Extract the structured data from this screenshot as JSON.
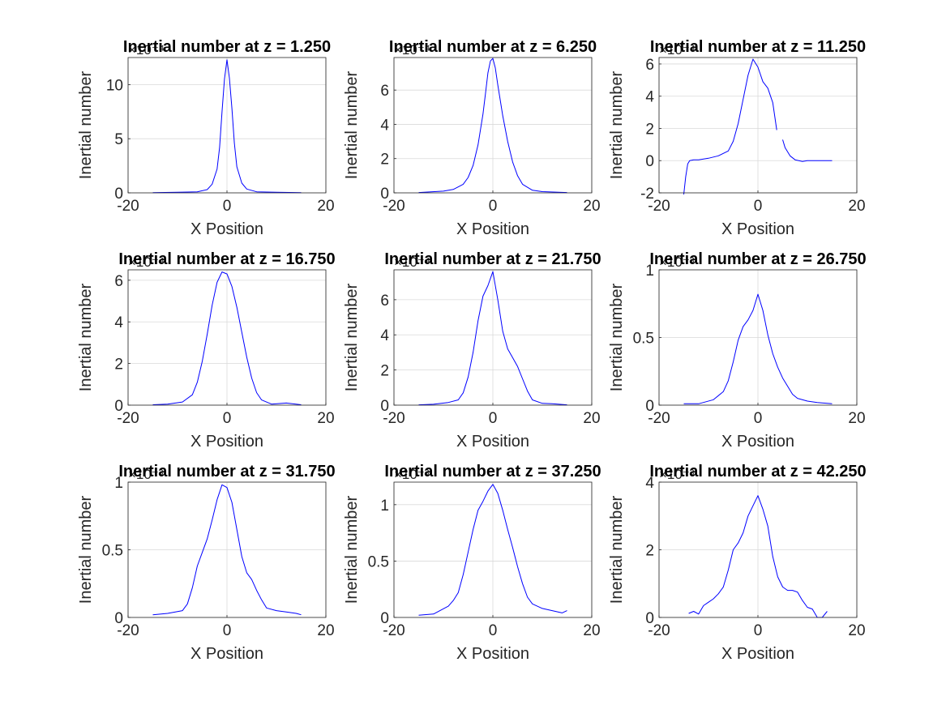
{
  "figure": {
    "background": "#ffffff",
    "line_color": "#0000ff",
    "grid_color": "#d9d9d9",
    "axis_color": "#262626"
  },
  "chart_data": [
    {
      "type": "line",
      "title": "Inertial number at z = 1.250",
      "xlabel": "X Position",
      "ylabel": "Inertial number",
      "exponent_label": "×10⁻⁴",
      "xlim": [
        -20,
        20
      ],
      "ylim": [
        0,
        12.5
      ],
      "xticks": [
        -20,
        0,
        20
      ],
      "yticks": [
        0,
        5,
        10
      ],
      "ytick_labels": [
        "0",
        "5",
        "10"
      ],
      "grid": true,
      "series": [
        {
          "x": [
            -15,
            -10,
            -6,
            -4,
            -3,
            -2,
            -1.5,
            -1,
            -0.5,
            0,
            0.5,
            1,
            1.5,
            2,
            3,
            4,
            6,
            10,
            15
          ],
          "y": [
            0.02,
            0.05,
            0.1,
            0.3,
            0.8,
            2.2,
            4.2,
            7.5,
            10.5,
            12.3,
            10.6,
            7.8,
            4.6,
            2.4,
            0.9,
            0.35,
            0.1,
            0.05,
            0.02
          ]
        }
      ]
    },
    {
      "type": "line",
      "title": "Inertial number at z = 6.250",
      "xlabel": "X Position",
      "ylabel": "Inertial number",
      "exponent_label": "×10⁻⁴",
      "xlim": [
        -20,
        20
      ],
      "ylim": [
        0,
        7.9
      ],
      "xticks": [
        -20,
        0,
        20
      ],
      "yticks": [
        0,
        2,
        4,
        6
      ],
      "ytick_labels": [
        "0",
        "2",
        "4",
        "6"
      ],
      "grid": true,
      "series": [
        {
          "x": [
            -15,
            -10,
            -8,
            -6,
            -5,
            -4,
            -3,
            -2,
            -1.5,
            -1,
            -0.5,
            0,
            0.5,
            1,
            2,
            3,
            4,
            5,
            6,
            8,
            10,
            15
          ],
          "y": [
            0.02,
            0.1,
            0.2,
            0.5,
            0.9,
            1.6,
            2.8,
            4.6,
            5.8,
            7.0,
            7.7,
            7.85,
            7.3,
            6.3,
            4.5,
            3.0,
            1.8,
            1.0,
            0.5,
            0.15,
            0.07,
            0.02
          ]
        }
      ]
    },
    {
      "type": "line",
      "title": "Inertial number at z = 11.250",
      "xlabel": "X Position",
      "ylabel": "Inertial number",
      "exponent_label": "×10⁻⁴",
      "xlim": [
        -20,
        20
      ],
      "ylim": [
        -2,
        6.4
      ],
      "xticks": [
        -20,
        0,
        20
      ],
      "yticks": [
        -2,
        0,
        2,
        4,
        6
      ],
      "ytick_labels": [
        "-2",
        "0",
        "2",
        "4",
        "6"
      ],
      "grid": true,
      "series": [
        {
          "x": [
            -15,
            -14.6,
            -14.2,
            -13.8,
            -13,
            -12,
            -10,
            -8,
            -6,
            -5,
            -4,
            -3,
            -2,
            -1,
            0,
            1,
            2,
            3,
            3.8,
            4.5,
            5,
            5.5,
            6.5,
            7.5,
            9,
            10,
            12,
            15
          ],
          "y": [
            -2.1,
            -1.0,
            -0.2,
            0.0,
            0.05,
            0.05,
            0.15,
            0.3,
            0.6,
            1.2,
            2.3,
            3.8,
            5.3,
            6.3,
            5.8,
            4.9,
            4.5,
            3.6,
            1.9,
            null,
            1.3,
            0.8,
            0.3,
            0.05,
            -0.05,
            0.0,
            0.0,
            0.0
          ]
        }
      ]
    },
    {
      "type": "line",
      "title": "Inertial number at z = 16.750",
      "xlabel": "X Position",
      "ylabel": "Inertial number",
      "exponent_label": "×10⁻⁴",
      "xlim": [
        -20,
        20
      ],
      "ylim": [
        0,
        6.5
      ],
      "xticks": [
        -20,
        0,
        20
      ],
      "yticks": [
        0,
        2,
        4,
        6
      ],
      "ytick_labels": [
        "0",
        "2",
        "4",
        "6"
      ],
      "grid": true,
      "series": [
        {
          "x": [
            -15,
            -12,
            -9,
            -7,
            -6,
            -5,
            -4,
            -3,
            -2,
            -1,
            0,
            1,
            2,
            3,
            4,
            5,
            6,
            7,
            9,
            12,
            15
          ],
          "y": [
            0.02,
            0.05,
            0.15,
            0.5,
            1.1,
            2.1,
            3.4,
            4.8,
            5.9,
            6.4,
            6.3,
            5.7,
            4.7,
            3.5,
            2.3,
            1.3,
            0.6,
            0.25,
            0.05,
            0.1,
            0.02
          ]
        }
      ]
    },
    {
      "type": "line",
      "title": "Inertial number at z = 21.750",
      "xlabel": "X Position",
      "ylabel": "Inertial number",
      "exponent_label": "×10⁻⁴",
      "xlim": [
        -20,
        20
      ],
      "ylim": [
        0,
        7.7
      ],
      "xticks": [
        -20,
        0,
        20
      ],
      "yticks": [
        0,
        2,
        4,
        6
      ],
      "ytick_labels": [
        "0",
        "2",
        "4",
        "6"
      ],
      "grid": true,
      "series": [
        {
          "x": [
            -15,
            -12,
            -9,
            -7,
            -6,
            -5,
            -4,
            -3,
            -2,
            -1,
            0,
            1,
            2,
            3,
            4,
            5,
            6,
            7,
            8,
            10,
            12,
            15
          ],
          "y": [
            0.02,
            0.05,
            0.15,
            0.3,
            0.7,
            1.6,
            3.0,
            4.8,
            6.2,
            6.8,
            7.6,
            6.0,
            4.2,
            3.2,
            2.7,
            2.2,
            1.5,
            0.8,
            0.3,
            0.1,
            0.08,
            0.02
          ]
        }
      ]
    },
    {
      "type": "line",
      "title": "Inertial number at z = 26.750",
      "xlabel": "X Position",
      "ylabel": "Inertial number",
      "exponent_label": "×10⁻³",
      "xlim": [
        -20,
        20
      ],
      "ylim": [
        0,
        1.0
      ],
      "xticks": [
        -20,
        0,
        20
      ],
      "yticks": [
        0,
        0.5,
        1
      ],
      "ytick_labels": [
        "0",
        "0.5",
        "1"
      ],
      "grid": true,
      "series": [
        {
          "x": [
            -15,
            -12,
            -9,
            -7,
            -6,
            -5,
            -4,
            -3,
            -2,
            -1,
            0,
            1,
            2,
            3,
            4,
            5,
            6,
            7,
            8,
            10,
            12,
            15
          ],
          "y": [
            0.01,
            0.01,
            0.04,
            0.1,
            0.18,
            0.32,
            0.48,
            0.58,
            0.63,
            0.7,
            0.82,
            0.7,
            0.52,
            0.38,
            0.28,
            0.2,
            0.14,
            0.08,
            0.05,
            0.03,
            0.02,
            0.01
          ]
        }
      ]
    },
    {
      "type": "line",
      "title": "Inertial number at z = 31.750",
      "xlabel": "X Position",
      "ylabel": "Inertial number",
      "exponent_label": "×10⁻³",
      "xlim": [
        -20,
        20
      ],
      "ylim": [
        0,
        1.0
      ],
      "xticks": [
        -20,
        0,
        20
      ],
      "yticks": [
        0,
        0.5,
        1
      ],
      "ytick_labels": [
        "0",
        "0.5",
        "1"
      ],
      "grid": true,
      "series": [
        {
          "x": [
            -15,
            -12,
            -9,
            -8,
            -7,
            -6,
            -5,
            -4,
            -3,
            -2,
            -1,
            0,
            1,
            2,
            3,
            4,
            5,
            6,
            7,
            8,
            10,
            12,
            14,
            15
          ],
          "y": [
            0.02,
            0.03,
            0.05,
            0.1,
            0.22,
            0.38,
            0.48,
            0.58,
            0.72,
            0.87,
            0.98,
            0.96,
            0.85,
            0.65,
            0.45,
            0.33,
            0.28,
            0.2,
            0.13,
            0.07,
            0.05,
            0.04,
            0.03,
            0.02
          ]
        }
      ]
    },
    {
      "type": "line",
      "title": "Inertial number at z = 37.250",
      "xlabel": "X Position",
      "ylabel": "Inertial number",
      "exponent_label": "×10⁻³",
      "xlim": [
        -20,
        20
      ],
      "ylim": [
        0,
        1.2
      ],
      "xticks": [
        -20,
        0,
        20
      ],
      "yticks": [
        0,
        0.5,
        1
      ],
      "ytick_labels": [
        "0",
        "0.5",
        "1"
      ],
      "grid": true,
      "series": [
        {
          "x": [
            -15,
            -12,
            -9,
            -8,
            -7,
            -6,
            -5,
            -4,
            -3,
            -2,
            -1,
            0,
            1,
            2,
            3,
            4,
            5,
            6,
            7,
            8,
            10,
            12,
            14,
            15
          ],
          "y": [
            0.02,
            0.03,
            0.1,
            0.15,
            0.22,
            0.38,
            0.58,
            0.78,
            0.95,
            1.03,
            1.12,
            1.18,
            1.1,
            0.95,
            0.78,
            0.62,
            0.45,
            0.3,
            0.18,
            0.12,
            0.08,
            0.06,
            0.04,
            0.06
          ]
        }
      ]
    },
    {
      "type": "line",
      "title": "Inertial number at z = 42.250",
      "xlabel": "X Position",
      "ylabel": "Inertial number",
      "exponent_label": "×10⁻³",
      "xlim": [
        -20,
        20
      ],
      "ylim": [
        0,
        4.0
      ],
      "xticks": [
        -20,
        0,
        20
      ],
      "yticks": [
        0,
        2,
        4
      ],
      "ytick_labels": [
        "0",
        "2",
        "4"
      ],
      "grid": true,
      "series": [
        {
          "x": [
            -14,
            -13,
            -12,
            -11,
            -10,
            -9,
            -8,
            -7,
            -6,
            -5,
            -4,
            -3,
            -2,
            -1,
            0,
            1,
            2,
            3,
            4,
            5,
            6,
            7,
            8,
            9,
            10,
            11,
            12,
            13,
            14
          ],
          "y": [
            0.12,
            0.18,
            0.1,
            0.35,
            0.45,
            0.55,
            0.7,
            0.9,
            1.4,
            2.0,
            2.2,
            2.5,
            3.0,
            3.3,
            3.6,
            3.2,
            2.7,
            1.8,
            1.2,
            0.9,
            0.8,
            0.8,
            0.75,
            0.5,
            0.3,
            0.25,
            0.0,
            0.0,
            0.18
          ]
        }
      ]
    }
  ]
}
